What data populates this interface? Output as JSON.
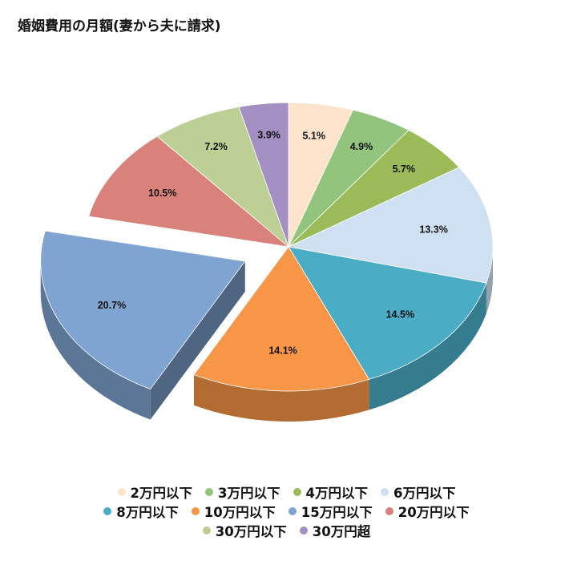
{
  "chart_data": {
    "type": "pie",
    "title": "婚姻費用の月額(妻から夫に請求)",
    "slices": [
      {
        "label": "2万円以下",
        "value": 5.1,
        "value_label": "5.1%",
        "color": "#fde3cc"
      },
      {
        "label": "3万円以下",
        "value": 4.9,
        "value_label": "4.9%",
        "color": "#93c47d"
      },
      {
        "label": "4万円以下",
        "value": 5.7,
        "value_label": "5.7%",
        "color": "#9bbb59"
      },
      {
        "label": "6万円以下",
        "value": 13.3,
        "value_label": "13.3%",
        "color": "#cfe0f3"
      },
      {
        "label": "8万円以下",
        "value": 14.5,
        "value_label": "14.5%",
        "color": "#4bacc6"
      },
      {
        "label": "10万円以下",
        "value": 14.1,
        "value_label": "14.1%",
        "color": "#f79646"
      },
      {
        "label": "15万円以下",
        "value": 20.7,
        "value_label": "20.7%",
        "color": "#7fa4d2",
        "exploded": true
      },
      {
        "label": "20万円以下",
        "value": 10.5,
        "value_label": "10.5%",
        "color": "#d9827b"
      },
      {
        "label": "30万円以下",
        "value": 7.2,
        "value_label": "7.2%",
        "color": "#bcd095"
      },
      {
        "label": "30万円超",
        "value": 3.9,
        "value_label": "3.9%",
        "color": "#a48fc3"
      }
    ],
    "legend_position": "bottom"
  }
}
